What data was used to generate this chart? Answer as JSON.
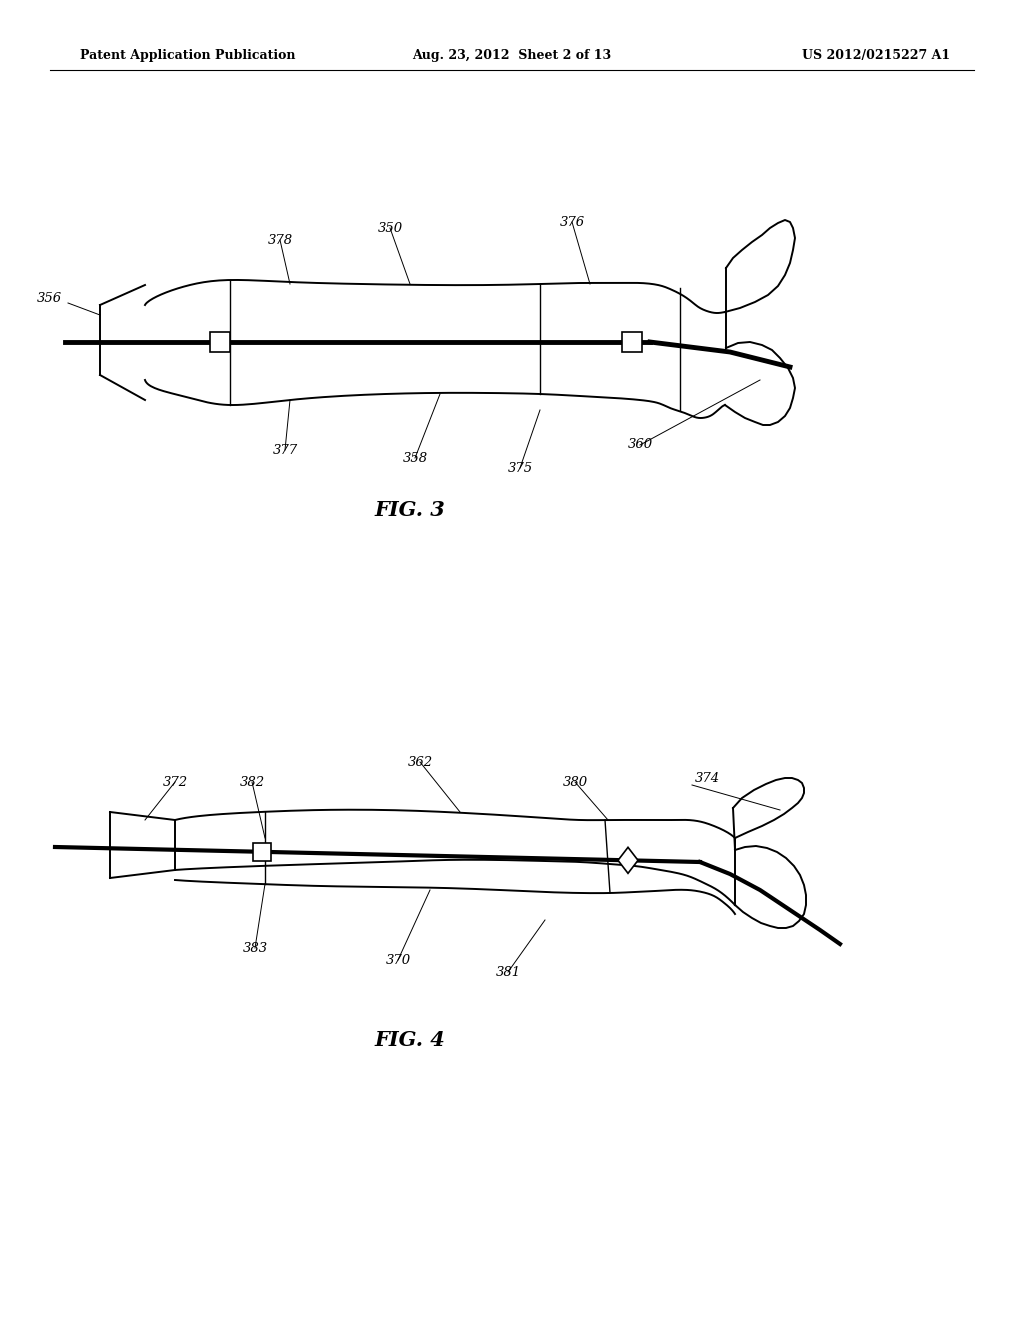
{
  "background_color": "#ffffff",
  "header_left": "Patent Application Publication",
  "header_center": "Aug. 23, 2012  Sheet 2 of 13",
  "header_right": "US 2012/0215227 A1",
  "fig3_label": "FIG. 3",
  "fig4_label": "FIG. 4"
}
